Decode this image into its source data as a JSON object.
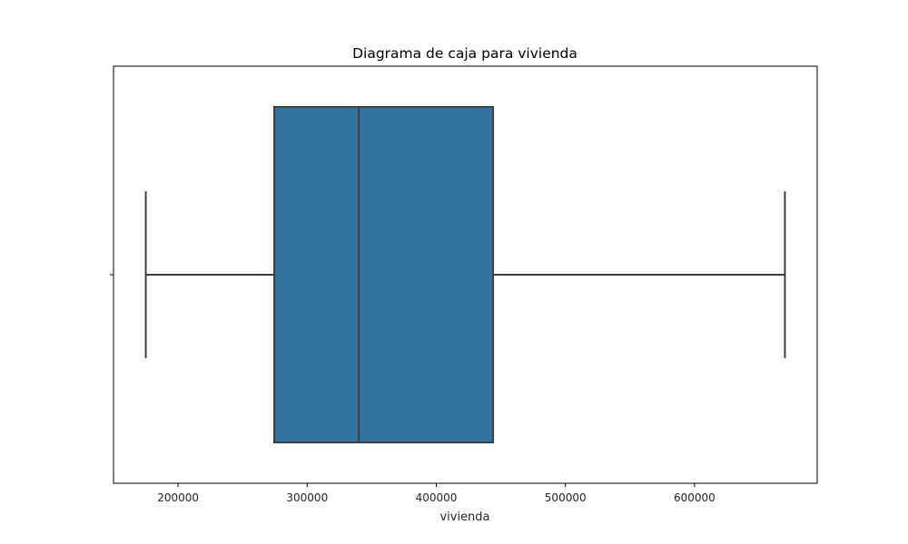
{
  "chart_data": {
    "type": "box",
    "title": "Diagrama de caja para vivienda",
    "xlabel": "vivienda",
    "ylabel": "",
    "xlim": [
      150000,
      695000
    ],
    "x_ticks": [
      200000,
      300000,
      400000,
      500000,
      600000
    ],
    "x_tick_labels": [
      "200000",
      "300000",
      "400000",
      "500000",
      "600000"
    ],
    "orientation": "horizontal",
    "grid": false,
    "legend": "none",
    "box": {
      "whisker_low": 175000,
      "q1": 274500,
      "median": 340000,
      "q3": 444000,
      "whisker_high": 670000
    },
    "colors": {
      "box_fill": "#3274a1",
      "lines": "#3f3f3f",
      "frame": "#000000"
    }
  }
}
